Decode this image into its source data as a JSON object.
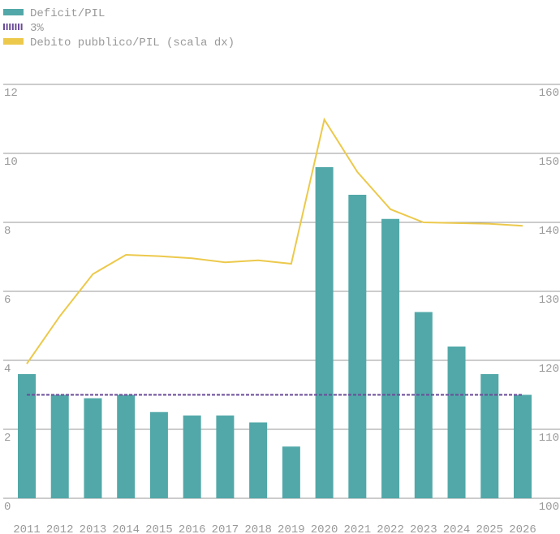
{
  "chart_data": {
    "type": "bar",
    "categories": [
      "2011",
      "2012",
      "2013",
      "2014",
      "2015",
      "2016",
      "2017",
      "2018",
      "2019",
      "2020",
      "2021",
      "2022",
      "2023",
      "2024",
      "2025",
      "2026"
    ],
    "series": [
      {
        "name": "Deficit/PIL",
        "type": "bar",
        "color": "#52a8a8",
        "values": [
          3.6,
          3.0,
          2.9,
          3.0,
          2.5,
          2.4,
          2.4,
          2.2,
          1.5,
          9.6,
          8.8,
          8.1,
          5.4,
          4.4,
          3.6,
          3.0
        ]
      },
      {
        "name": "3%",
        "type": "dashed",
        "color": "#6b4c9a",
        "values": [
          3,
          3,
          3,
          3,
          3,
          3,
          3,
          3,
          3,
          3,
          3,
          3,
          3,
          3,
          3,
          3
        ]
      },
      {
        "name": "Debito pubblico/PIL (scala dx)",
        "type": "line",
        "axis": "y2",
        "color": "#ecc94b",
        "values": [
          119.5,
          126.4,
          132.5,
          135.3,
          135.1,
          134.8,
          134.2,
          134.5,
          134.0,
          154.9,
          147.3,
          141.9,
          140.0,
          139.9,
          139.8,
          139.5
        ]
      }
    ],
    "ylim": [
      0,
      12
    ],
    "yticks": [
      0,
      2,
      4,
      6,
      8,
      10,
      12
    ],
    "y2lim": [
      100,
      160
    ],
    "y2ticks": [
      100,
      110,
      120,
      130,
      140,
      150,
      160
    ],
    "grid": true,
    "legend": "top-left"
  }
}
